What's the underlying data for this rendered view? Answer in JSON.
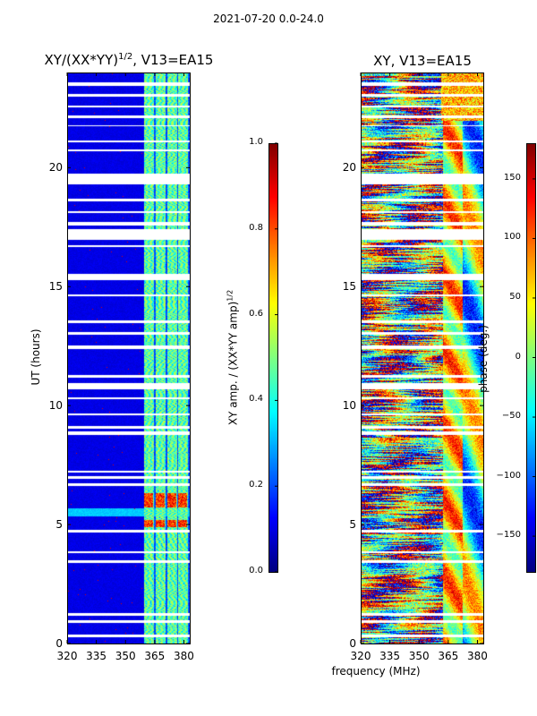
{
  "header": {
    "suptitle": "2021-07-20 0.0-24.0"
  },
  "chart_data": [
    {
      "type": "heatmap",
      "title_main": "XY/(XX*YY)",
      "title_sup": "1/2",
      "title_rest": ", V13=EA15",
      "ylabel": "UT (hours)",
      "xlabel": "",
      "xlim": [
        320,
        383
      ],
      "ylim": [
        0,
        24
      ],
      "xticks": [
        "320",
        "335",
        "350",
        "365",
        "380"
      ],
      "xtick_values": [
        320,
        335,
        350,
        365,
        380
      ],
      "yticks": [
        "0",
        "5",
        "10",
        "15",
        "20"
      ],
      "ytick_values": [
        0,
        5,
        10,
        15,
        20
      ],
      "colorscale": "jet",
      "colorbar": {
        "label_main": "XY amp. / (XX*YY amp)",
        "label_sup": "1/2",
        "range": [
          0.0,
          1.0
        ],
        "ticks": [
          "0.0",
          "0.2",
          "0.4",
          "0.6",
          "0.8",
          "1.0"
        ],
        "tick_values": [
          0.0,
          0.2,
          0.4,
          0.6,
          0.8,
          1.0
        ]
      }
    },
    {
      "type": "heatmap",
      "title": "XY, V13=EA15",
      "ylabel": "",
      "xlabel": "frequency (MHz)",
      "xlim": [
        320,
        383
      ],
      "ylim": [
        0,
        24
      ],
      "xticks": [
        "320",
        "335",
        "350",
        "365",
        "380"
      ],
      "xtick_values": [
        320,
        335,
        350,
        365,
        380
      ],
      "yticks": [
        "0",
        "5",
        "10",
        "15",
        "20"
      ],
      "ytick_values": [
        0,
        5,
        10,
        15,
        20
      ],
      "colorscale": "jet",
      "colorbar": {
        "label": "phase (deg.)",
        "range": [
          -180,
          180
        ],
        "ticks": [
          "−150",
          "−100",
          "−50",
          "0",
          "50",
          "100",
          "150"
        ],
        "tick_values": [
          -150,
          -100,
          -50,
          0,
          50,
          100,
          150
        ]
      }
    }
  ]
}
